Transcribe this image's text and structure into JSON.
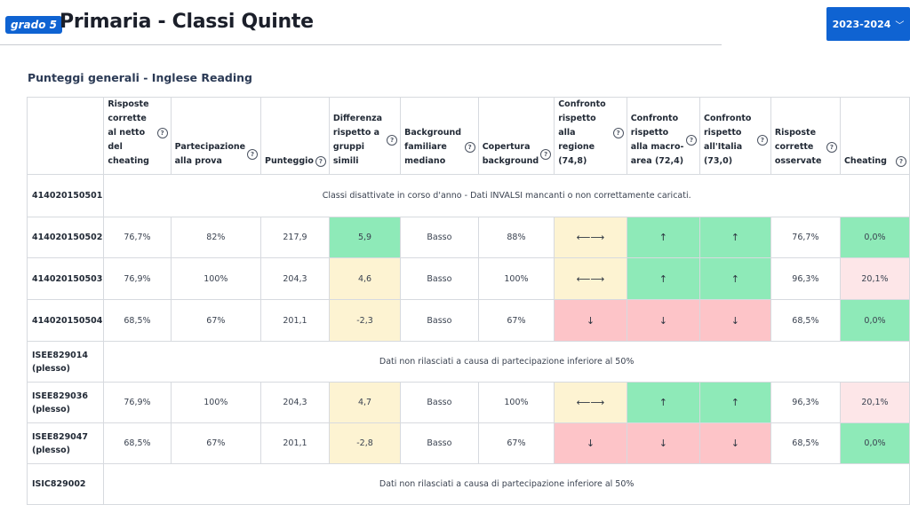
{
  "header": {
    "grade_badge": "grado 5",
    "title": "Primaria - Classi Quinte",
    "year_selector": {
      "value": "2023-2024",
      "icon": "chevron-down-icon"
    }
  },
  "section": {
    "title": "Punteggi generali - Inglese Reading"
  },
  "table": {
    "help_icon": "?",
    "columns": [
      "Risposte corrette al netto del cheating",
      "Partecipazione alla prova",
      "Punteggio",
      "Differenza rispetto a gruppi simili",
      "Background familiare mediano",
      "Copertura background",
      "Confronto rispetto alla regione (74,8)",
      "Confronto rispetto alla macro-area (72,4)",
      "Confronto rispetto all'Italia (73,0)",
      "Risposte corrette osservate",
      "Cheating"
    ],
    "rows": [
      {
        "code": "414020150501",
        "message": "Classi disattivate in corso d'anno - Dati INVALSI mancanti o non correttamente caricati."
      },
      {
        "code": "414020150502",
        "cells": [
          "76,7%",
          "82%",
          "217,9",
          "5,9",
          "Basso",
          "88%",
          "⟵⟶",
          "↑",
          "↑",
          "76,7%",
          "0,0%"
        ]
      },
      {
        "code": "414020150503",
        "cells": [
          "76,9%",
          "100%",
          "204,3",
          "4,6",
          "Basso",
          "100%",
          "⟵⟶",
          "↑",
          "↑",
          "96,3%",
          "20,1%"
        ]
      },
      {
        "code": "414020150504",
        "cells": [
          "68,5%",
          "67%",
          "201,1",
          "-2,3",
          "Basso",
          "67%",
          "↓",
          "↓",
          "↓",
          "68,5%",
          "0,0%"
        ]
      },
      {
        "code": "ISEE829014",
        "sub": "(plesso)",
        "message": "Dati non rilasciati a causa di partecipazione inferiore al 50%"
      },
      {
        "code": "ISEE829036",
        "sub": "(plesso)",
        "cells": [
          "76,9%",
          "100%",
          "204,3",
          "4,7",
          "Basso",
          "100%",
          "⟵⟶",
          "↑",
          "↑",
          "96,3%",
          "20,1%"
        ]
      },
      {
        "code": "ISEE829047",
        "sub": "(plesso)",
        "cells": [
          "68,5%",
          "67%",
          "201,1",
          "-2,8",
          "Basso",
          "67%",
          "↓",
          "↓",
          "↓",
          "68,5%",
          "0,0%"
        ]
      },
      {
        "code": "ISIC829002",
        "message": "Dati non rilasciati a causa di partecipazione inferiore al 50%"
      }
    ],
    "status_colors": {
      "green": "#8eeab8",
      "yellow": "#fdf3d2",
      "red": "#fdc4c8",
      "pink": "#fde6e8"
    }
  }
}
